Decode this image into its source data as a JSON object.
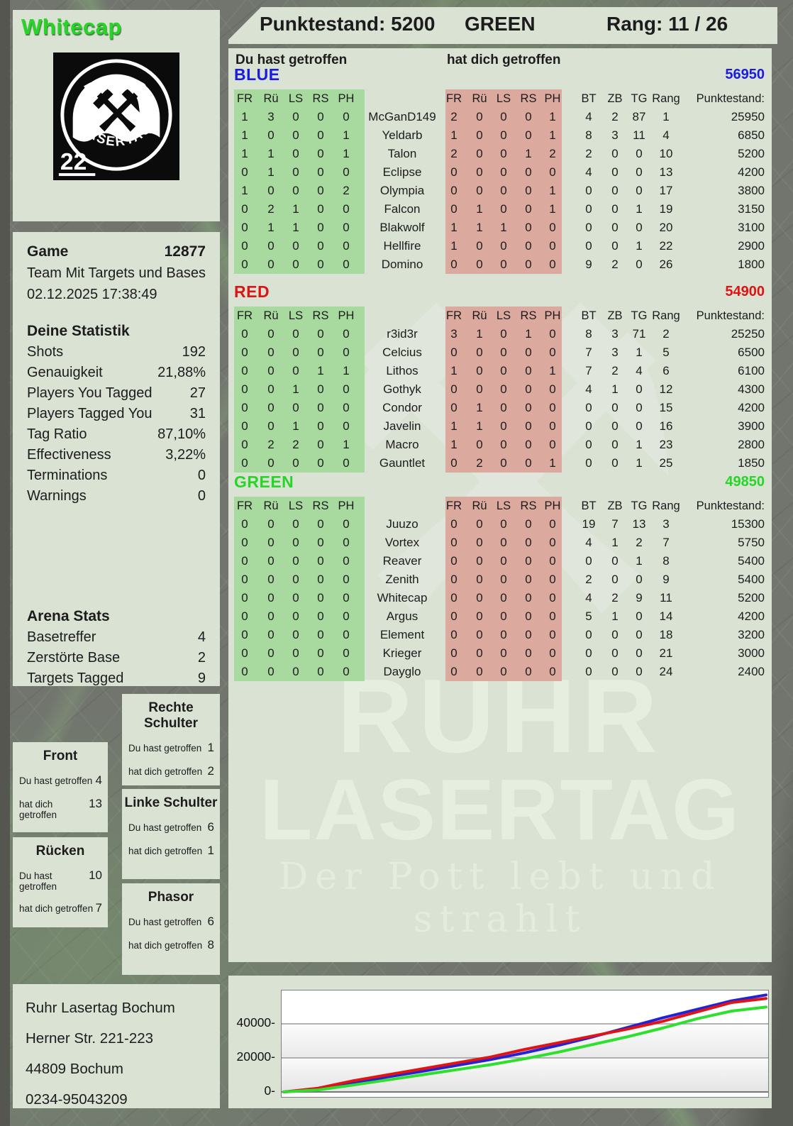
{
  "header": {
    "player": "Whitecap",
    "points_label": "Punktestand: 5200",
    "team": "GREEN",
    "rank_label": "Rang: 11 / 26"
  },
  "logo": {
    "arc_top": "RUHR",
    "arc_bottom": "LASERTAG",
    "badge": "22",
    "hammers_icon": "crossed-hammers"
  },
  "game": {
    "label": "Game",
    "number": "12877",
    "mode": "Team Mit Targets und Bases",
    "datetime": "02.12.2025 17:38:49"
  },
  "deine_statistik": {
    "title": "Deine Statistik",
    "rows": [
      {
        "label": "Shots",
        "value": "192"
      },
      {
        "label": "Genauigkeit",
        "value": "21,88%"
      },
      {
        "label": "Players You Tagged",
        "value": "27"
      },
      {
        "label": "Players Tagged You",
        "value": "31"
      },
      {
        "label": "Tag Ratio",
        "value": "87,10%"
      },
      {
        "label": "Effectiveness",
        "value": "3,22%"
      },
      {
        "label": "Terminations",
        "value": "0"
      },
      {
        "label": "Warnings",
        "value": "0"
      }
    ]
  },
  "arena_stats": {
    "title": "Arena Stats",
    "rows": [
      {
        "label": "Basetreffer",
        "value": "4"
      },
      {
        "label": "Zerstörte Base",
        "value": "2"
      },
      {
        "label": "Targets Tagged",
        "value": "9"
      }
    ]
  },
  "hit_zones": [
    {
      "title": "Front",
      "you": "4",
      "them": "13"
    },
    {
      "title": "Rücken",
      "you": "10",
      "them": "7"
    },
    {
      "title": "Rechte Schulter",
      "you": "1",
      "them": "2"
    },
    {
      "title": "Linke Schulter",
      "you": "6",
      "them": "1"
    },
    {
      "title": "Phasor",
      "you": "6",
      "them": "8"
    }
  ],
  "zone_row_labels": {
    "you": "Du hast getroffen",
    "them": "hat dich getroffen"
  },
  "labels": {
    "you_hit": "Du hast getroffen",
    "hit_you": "hat dich getroffen",
    "points_col": "Punktestand:"
  },
  "hit_columns": [
    "FR",
    "Rü",
    "LS",
    "RS",
    "PH"
  ],
  "score_columns": [
    "BT",
    "ZB",
    "TG",
    "Rang"
  ],
  "teams": [
    {
      "name": "BLUE",
      "color": "#1b1be0",
      "total": "56950",
      "players": [
        {
          "name": "McGanD149",
          "you": [
            1,
            3,
            0,
            0,
            0
          ],
          "them": [
            2,
            0,
            0,
            0,
            1
          ],
          "bt": 4,
          "zb": 2,
          "tg": 87,
          "rang": 1,
          "points": "25950"
        },
        {
          "name": "Yeldarb",
          "you": [
            1,
            0,
            0,
            0,
            1
          ],
          "them": [
            1,
            0,
            0,
            0,
            1
          ],
          "bt": 8,
          "zb": 3,
          "tg": 11,
          "rang": 4,
          "points": "6850"
        },
        {
          "name": "Talon",
          "you": [
            1,
            1,
            0,
            0,
            1
          ],
          "them": [
            2,
            0,
            0,
            1,
            2
          ],
          "bt": 2,
          "zb": 0,
          "tg": 0,
          "rang": 10,
          "points": "5200"
        },
        {
          "name": "Eclipse",
          "you": [
            0,
            1,
            0,
            0,
            0
          ],
          "them": [
            0,
            0,
            0,
            0,
            0
          ],
          "bt": 4,
          "zb": 0,
          "tg": 0,
          "rang": 13,
          "points": "4200"
        },
        {
          "name": "Olympia",
          "you": [
            1,
            0,
            0,
            0,
            2
          ],
          "them": [
            0,
            0,
            0,
            0,
            1
          ],
          "bt": 0,
          "zb": 0,
          "tg": 0,
          "rang": 17,
          "points": "3800"
        },
        {
          "name": "Falcon",
          "you": [
            0,
            2,
            1,
            0,
            0
          ],
          "them": [
            0,
            1,
            0,
            0,
            1
          ],
          "bt": 0,
          "zb": 0,
          "tg": 1,
          "rang": 19,
          "points": "3150"
        },
        {
          "name": "Blakwolf",
          "you": [
            0,
            1,
            1,
            0,
            0
          ],
          "them": [
            1,
            1,
            1,
            0,
            0
          ],
          "bt": 0,
          "zb": 0,
          "tg": 0,
          "rang": 20,
          "points": "3100"
        },
        {
          "name": "Hellfire",
          "you": [
            0,
            0,
            0,
            0,
            0
          ],
          "them": [
            1,
            0,
            0,
            0,
            0
          ],
          "bt": 0,
          "zb": 0,
          "tg": 1,
          "rang": 22,
          "points": "2900"
        },
        {
          "name": "Domino",
          "you": [
            0,
            0,
            0,
            0,
            0
          ],
          "them": [
            0,
            0,
            0,
            0,
            0
          ],
          "bt": 9,
          "zb": 2,
          "tg": 0,
          "rang": 26,
          "points": "1800"
        }
      ]
    },
    {
      "name": "RED",
      "color": "#dd1414",
      "total": "54900",
      "players": [
        {
          "name": "r3id3r",
          "you": [
            0,
            0,
            0,
            0,
            0
          ],
          "them": [
            3,
            1,
            0,
            1,
            0
          ],
          "bt": 8,
          "zb": 3,
          "tg": 71,
          "rang": 2,
          "points": "25250"
        },
        {
          "name": "Celcius",
          "you": [
            0,
            0,
            0,
            0,
            0
          ],
          "them": [
            0,
            0,
            0,
            0,
            0
          ],
          "bt": 7,
          "zb": 3,
          "tg": 1,
          "rang": 5,
          "points": "6500"
        },
        {
          "name": "Lithos",
          "you": [
            0,
            0,
            0,
            1,
            1
          ],
          "them": [
            1,
            0,
            0,
            0,
            1
          ],
          "bt": 7,
          "zb": 2,
          "tg": 4,
          "rang": 6,
          "points": "6100"
        },
        {
          "name": "Gothyk",
          "you": [
            0,
            0,
            1,
            0,
            0
          ],
          "them": [
            0,
            0,
            0,
            0,
            0
          ],
          "bt": 4,
          "zb": 1,
          "tg": 0,
          "rang": 12,
          "points": "4300"
        },
        {
          "name": "Condor",
          "you": [
            0,
            0,
            0,
            0,
            0
          ],
          "them": [
            0,
            1,
            0,
            0,
            0
          ],
          "bt": 0,
          "zb": 0,
          "tg": 0,
          "rang": 15,
          "points": "4200"
        },
        {
          "name": "Javelin",
          "you": [
            0,
            0,
            1,
            0,
            0
          ],
          "them": [
            1,
            1,
            0,
            0,
            0
          ],
          "bt": 0,
          "zb": 0,
          "tg": 0,
          "rang": 16,
          "points": "3900"
        },
        {
          "name": "Macro",
          "you": [
            0,
            2,
            2,
            0,
            1
          ],
          "them": [
            1,
            0,
            0,
            0,
            0
          ],
          "bt": 0,
          "zb": 0,
          "tg": 1,
          "rang": 23,
          "points": "2800"
        },
        {
          "name": "Gauntlet",
          "you": [
            0,
            0,
            0,
            0,
            0
          ],
          "them": [
            0,
            2,
            0,
            0,
            1
          ],
          "bt": 0,
          "zb": 0,
          "tg": 1,
          "rang": 25,
          "points": "1850"
        }
      ]
    },
    {
      "name": "GREEN",
      "color": "#27d527",
      "total": "49850",
      "players": [
        {
          "name": "Juuzo",
          "you": [
            0,
            0,
            0,
            0,
            0
          ],
          "them": [
            0,
            0,
            0,
            0,
            0
          ],
          "bt": 19,
          "zb": 7,
          "tg": 13,
          "rang": 3,
          "points": "15300"
        },
        {
          "name": "Vortex",
          "you": [
            0,
            0,
            0,
            0,
            0
          ],
          "them": [
            0,
            0,
            0,
            0,
            0
          ],
          "bt": 4,
          "zb": 1,
          "tg": 2,
          "rang": 7,
          "points": "5750"
        },
        {
          "name": "Reaver",
          "you": [
            0,
            0,
            0,
            0,
            0
          ],
          "them": [
            0,
            0,
            0,
            0,
            0
          ],
          "bt": 0,
          "zb": 0,
          "tg": 1,
          "rang": 8,
          "points": "5400"
        },
        {
          "name": "Zenith",
          "you": [
            0,
            0,
            0,
            0,
            0
          ],
          "them": [
            0,
            0,
            0,
            0,
            0
          ],
          "bt": 2,
          "zb": 0,
          "tg": 0,
          "rang": 9,
          "points": "5400"
        },
        {
          "name": "Whitecap",
          "you": [
            0,
            0,
            0,
            0,
            0
          ],
          "them": [
            0,
            0,
            0,
            0,
            0
          ],
          "bt": 4,
          "zb": 2,
          "tg": 9,
          "rang": 11,
          "points": "5200"
        },
        {
          "name": "Argus",
          "you": [
            0,
            0,
            0,
            0,
            0
          ],
          "them": [
            0,
            0,
            0,
            0,
            0
          ],
          "bt": 5,
          "zb": 1,
          "tg": 0,
          "rang": 14,
          "points": "4200"
        },
        {
          "name": "Element",
          "you": [
            0,
            0,
            0,
            0,
            0
          ],
          "them": [
            0,
            0,
            0,
            0,
            0
          ],
          "bt": 0,
          "zb": 0,
          "tg": 0,
          "rang": 18,
          "points": "3200"
        },
        {
          "name": "Krieger",
          "you": [
            0,
            0,
            0,
            0,
            0
          ],
          "them": [
            0,
            0,
            0,
            0,
            0
          ],
          "bt": 0,
          "zb": 0,
          "tg": 0,
          "rang": 21,
          "points": "3000"
        },
        {
          "name": "Dayglo",
          "you": [
            0,
            0,
            0,
            0,
            0
          ],
          "them": [
            0,
            0,
            0,
            0,
            0
          ],
          "bt": 0,
          "zb": 0,
          "tg": 0,
          "rang": 24,
          "points": "2400"
        }
      ]
    }
  ],
  "watermark": {
    "line1": "RUHR",
    "line2": "LASERTAG",
    "line3": "Der Pott lebt und strahlt"
  },
  "address": {
    "lines": [
      "Ruhr Lasertag Bochum",
      "Herner Str. 221-223",
      "44809 Bochum",
      "0234-95043209"
    ]
  },
  "chart_data": {
    "type": "line",
    "title": "",
    "xlabel": "",
    "ylabel": "",
    "ylim": [
      0,
      59600
    ],
    "yticks": [
      0,
      20000,
      40000
    ],
    "grid": true,
    "legend": "none",
    "series": [
      {
        "name": "BLUE",
        "color": "#2323d6",
        "values": [
          0,
          1500,
          5000,
          8800,
          12000,
          15500,
          19000,
          23000,
          27500,
          32500,
          38000,
          43500,
          48500,
          53500,
          56950
        ]
      },
      {
        "name": "RED",
        "color": "#e01414",
        "values": [
          0,
          2200,
          6500,
          10000,
          13500,
          17000,
          20500,
          25000,
          29000,
          33000,
          37000,
          41500,
          47000,
          52500,
          54900
        ]
      },
      {
        "name": "GREEN",
        "color": "#2ee02e",
        "values": [
          0,
          1200,
          4000,
          7000,
          10000,
          13000,
          16000,
          19500,
          23500,
          28000,
          32500,
          37500,
          43000,
          47500,
          49850
        ]
      }
    ]
  }
}
